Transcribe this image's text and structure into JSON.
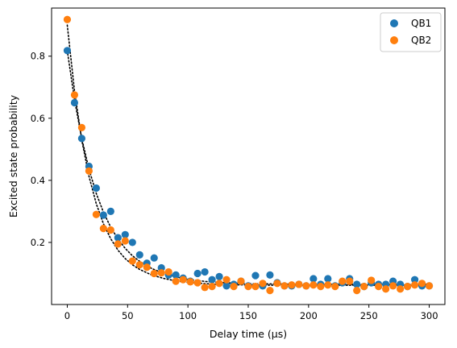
{
  "chart_data": {
    "type": "scatter",
    "title": "",
    "xlabel": "Delay time (µs)",
    "ylabel": "Excited state probability",
    "xlim": [
      -13,
      313
    ],
    "ylim": [
      0.0,
      0.955
    ],
    "xticks": [
      0,
      50,
      100,
      150,
      200,
      250,
      300
    ],
    "yticks": [
      0.2,
      0.4,
      0.6,
      0.8
    ],
    "grid": false,
    "legend": "top-right",
    "series": [
      {
        "name": "QB1",
        "color": "#1f77b4",
        "x": [
          0,
          6,
          12,
          18,
          24,
          30,
          36,
          42,
          48,
          54,
          60,
          66,
          72,
          78,
          84,
          90,
          96,
          102,
          108,
          114,
          120,
          126,
          132,
          138,
          144,
          150,
          156,
          162,
          168,
          174,
          180,
          186,
          192,
          198,
          204,
          210,
          216,
          222,
          228,
          234,
          240,
          246,
          252,
          258,
          264,
          270,
          276,
          282,
          288,
          294,
          300
        ],
        "y": [
          0.818,
          0.65,
          0.535,
          0.445,
          0.375,
          0.288,
          0.3,
          0.215,
          0.225,
          0.2,
          0.16,
          0.133,
          0.15,
          0.118,
          0.095,
          0.095,
          0.085,
          0.075,
          0.1,
          0.105,
          0.08,
          0.09,
          0.06,
          0.065,
          0.075,
          0.06,
          0.093,
          0.06,
          0.095,
          0.07,
          0.06,
          0.06,
          0.065,
          0.06,
          0.083,
          0.065,
          0.083,
          0.06,
          0.07,
          0.083,
          0.065,
          0.058,
          0.07,
          0.065,
          0.065,
          0.075,
          0.065,
          0.058,
          0.08,
          0.06,
          0.06
        ]
      },
      {
        "name": "QB2",
        "color": "#ff7f0e",
        "x": [
          0,
          6,
          12,
          18,
          24,
          30,
          36,
          42,
          48,
          54,
          60,
          66,
          72,
          78,
          84,
          90,
          96,
          102,
          108,
          114,
          120,
          126,
          132,
          138,
          144,
          150,
          156,
          162,
          168,
          174,
          180,
          186,
          192,
          198,
          204,
          210,
          216,
          222,
          228,
          234,
          240,
          246,
          252,
          258,
          264,
          270,
          276,
          282,
          288,
          294,
          300
        ],
        "y": [
          0.918,
          0.675,
          0.57,
          0.43,
          0.29,
          0.245,
          0.24,
          0.195,
          0.205,
          0.14,
          0.128,
          0.12,
          0.1,
          0.102,
          0.105,
          0.075,
          0.08,
          0.073,
          0.07,
          0.055,
          0.058,
          0.068,
          0.08,
          0.058,
          0.075,
          0.058,
          0.058,
          0.068,
          0.045,
          0.068,
          0.06,
          0.063,
          0.065,
          0.06,
          0.063,
          0.058,
          0.063,
          0.058,
          0.075,
          0.075,
          0.045,
          0.058,
          0.078,
          0.058,
          0.05,
          0.06,
          0.05,
          0.058,
          0.063,
          0.068,
          0.06
        ]
      }
    ],
    "fits": [
      {
        "name": "QB1 fit",
        "style": "dotted",
        "color": "#000000",
        "x": [
          0,
          6,
          12,
          18,
          24,
          30,
          36,
          42,
          48,
          54,
          60,
          70,
          80,
          90,
          100,
          115,
          130,
          150,
          175,
          200,
          250,
          300
        ],
        "y": [
          0.818,
          0.66,
          0.535,
          0.436,
          0.358,
          0.297,
          0.249,
          0.211,
          0.181,
          0.157,
          0.139,
          0.116,
          0.1,
          0.089,
          0.081,
          0.074,
          0.07,
          0.067,
          0.066,
          0.065,
          0.065,
          0.065
        ]
      },
      {
        "name": "QB2 fit",
        "style": "dotted",
        "color": "#000000",
        "x": [
          0,
          6,
          12,
          18,
          24,
          30,
          36,
          42,
          48,
          54,
          60,
          70,
          80,
          90,
          100,
          115,
          130,
          150,
          175,
          200,
          250,
          300
        ],
        "y": [
          0.9,
          0.688,
          0.53,
          0.413,
          0.325,
          0.26,
          0.212,
          0.175,
          0.148,
          0.128,
          0.113,
          0.095,
          0.084,
          0.076,
          0.071,
          0.067,
          0.064,
          0.063,
          0.062,
          0.062,
          0.062,
          0.062
        ]
      }
    ]
  }
}
